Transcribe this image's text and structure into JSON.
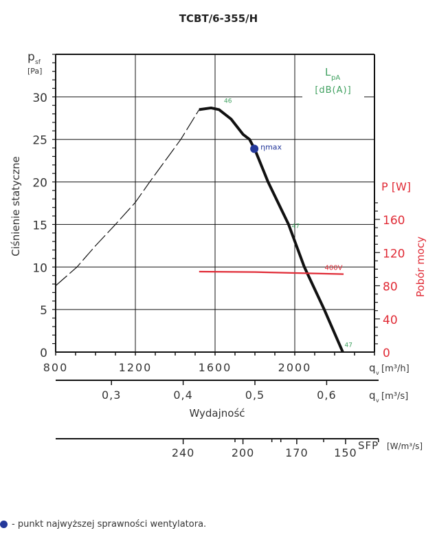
{
  "chart_data": {
    "type": "line",
    "title": "TCBT/6-355/H",
    "ylabel": "Ciśnienie statyczne",
    "ylabel_symbol": "p",
    "ylabel_sub": "sf",
    "ylabel_unit": "[Pa]",
    "ylim": [
      0,
      35
    ],
    "yticks": [
      0,
      5,
      10,
      15,
      20,
      25,
      30
    ],
    "xlabel": "Wydajność",
    "xlim": [
      800,
      2400
    ],
    "xticks": [
      800,
      1200,
      1600,
      2000
    ],
    "x_unit_label": "[m³/h]",
    "x_symbol": "q",
    "x_sub": "v",
    "x2_ticks": [
      0.3,
      0.4,
      0.5,
      0.6
    ],
    "x2_tick_labels": [
      "0,3",
      "0,4",
      "0,5",
      "0,6"
    ],
    "x2_unit_label": "[m³/s]",
    "sfp_ticks": [
      {
        "label": "240",
        "qv": 1440
      },
      {
        "label": "200",
        "qv": 1740
      },
      {
        "label": "170",
        "qv": 2010
      },
      {
        "label": "150",
        "qv": 2255
      }
    ],
    "sfp_label": "SFP",
    "sfp_unit": "[W/m³/s]",
    "y2label": "Pobór mocy",
    "y2_unit": "P [W]",
    "y2lim": [
      0,
      180
    ],
    "y2ticks": [
      0,
      40,
      80,
      120,
      160
    ],
    "lpa_label": "L",
    "lpa_sub": "pA",
    "lpa_unit": "[dB(A)]",
    "series": [
      {
        "name": "pressure-unstable",
        "style": "dashed",
        "x": [
          800,
          907,
          1000,
          1100,
          1200,
          1272,
          1350,
          1428,
          1520
        ],
        "y": [
          7.8,
          10,
          12.5,
          15,
          17.6,
          20,
          22.5,
          25,
          28.5
        ]
      },
      {
        "name": "pressure",
        "style": "solid",
        "x": [
          1520,
          1580,
          1620,
          1680,
          1740,
          1773,
          1800,
          1866,
          1969,
          2048,
          2148,
          2241
        ],
        "y": [
          28.5,
          28.7,
          28.5,
          27.4,
          25.6,
          25,
          23.8,
          20,
          15,
          10,
          5,
          0
        ]
      },
      {
        "name": "400V",
        "axis": "power",
        "x": [
          1520,
          1800,
          2245
        ],
        "y": [
          97,
          96.5,
          94
        ]
      }
    ],
    "eta_max": {
      "label": "ηmax",
      "x": 1797,
      "y": 23.9
    },
    "noise_labels": [
      {
        "text": "46",
        "x": 1645,
        "y": 29.3
      },
      {
        "text": "47",
        "x": 1985,
        "y": 14.6
      },
      {
        "text": "47",
        "x": 2250,
        "y": 0.6
      }
    ],
    "power_label": {
      "text": "400V",
      "x": 2150,
      "y": 99
    },
    "colors": {
      "curve": "#111111",
      "power": "#e02a35",
      "noise": "#3fa05f",
      "eta": "#24389a",
      "grid": "#111111"
    }
  },
  "footnote": "- punkt najwyższej sprawności wentylatora."
}
